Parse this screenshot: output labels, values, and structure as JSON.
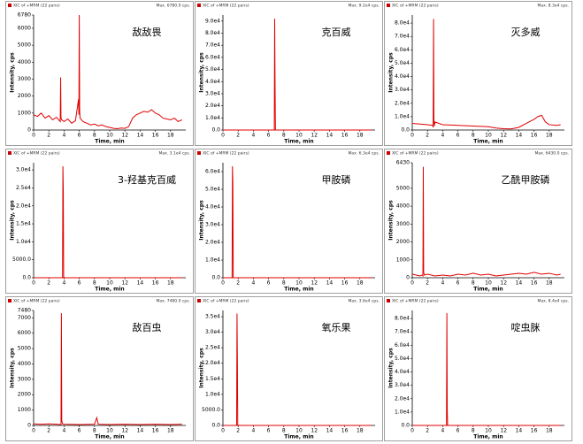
{
  "chart_data": [
    {
      "type": "line",
      "title": "敌敌畏",
      "header": "XIC of +MRM (22 pairs)",
      "max_label": "Max. 6780.0 cps.",
      "xlabel": "Time, min",
      "ylabel": "Intensity, cps",
      "xlim": [
        0,
        20
      ],
      "xticks": [
        0,
        2,
        4,
        6,
        8,
        10,
        12,
        14,
        16,
        18
      ],
      "ylim": [
        0,
        6780
      ],
      "yticks": [
        0,
        1000,
        2000,
        3000,
        4000,
        5000,
        6000,
        6780
      ],
      "x": [
        0,
        0.5,
        1,
        1.5,
        2,
        2.5,
        3,
        3.5,
        3.55,
        3.6,
        3.7,
        4,
        4.5,
        5,
        5.5,
        5.9,
        5.95,
        6.0,
        6.05,
        6.1,
        6.5,
        7,
        7.5,
        8,
        8.5,
        9,
        9.5,
        10,
        10.5,
        11,
        11.5,
        12,
        12.5,
        13,
        13.5,
        14,
        14.5,
        15,
        15.5,
        16,
        16.5,
        17,
        17.5,
        18,
        18.5,
        19,
        19.5
      ],
      "series": [
        {
          "color": "#e00000",
          "values": [
            900,
            800,
            1000,
            700,
            850,
            600,
            750,
            500,
            3100,
            700,
            600,
            500,
            650,
            400,
            550,
            1800,
            900,
            6780,
            1200,
            700,
            500,
            400,
            300,
            350,
            250,
            300,
            200,
            150,
            100,
            80,
            120,
            100,
            200,
            700,
            900,
            1000,
            1100,
            1050,
            1200,
            1000,
            900,
            700,
            650,
            600,
            700,
            500,
            600
          ]
        }
      ]
    },
    {
      "type": "line",
      "title": "克百威",
      "header": "XIC of +MRM (22 pairs)",
      "max_label": "Max. 9.2e4 cps.",
      "xlabel": "Time, min",
      "ylabel": "Intensity, cps",
      "xlim": [
        0,
        20
      ],
      "xticks": [
        0,
        2,
        4,
        6,
        8,
        10,
        12,
        14,
        16,
        18
      ],
      "ylim": [
        0,
        95000
      ],
      "yticks": [
        {
          "value": 0,
          "label": "0.0"
        },
        {
          "value": 10000,
          "label": "1.0e4"
        },
        {
          "value": 20000,
          "label": "2.0e4"
        },
        {
          "value": 30000,
          "label": "3.0e4"
        },
        {
          "value": 40000,
          "label": "4.0e4"
        },
        {
          "value": 50000,
          "label": "5.0e4"
        },
        {
          "value": 60000,
          "label": "6.0e4"
        },
        {
          "value": 70000,
          "label": "7.0e4"
        },
        {
          "value": 80000,
          "label": "8.0e4"
        },
        {
          "value": 90000,
          "label": "9.0e4"
        }
      ],
      "x": [
        0,
        2,
        4,
        6,
        6.75,
        6.8,
        6.85,
        6.9,
        8,
        10,
        12,
        14,
        16,
        18,
        19.5
      ],
      "series": [
        {
          "color": "#e00000",
          "values": [
            0,
            0,
            0,
            0,
            0,
            92000,
            40000,
            0,
            0,
            0,
            0,
            0,
            0,
            0,
            0
          ]
        }
      ]
    },
    {
      "type": "line",
      "title": "灭多威",
      "header": "XIC of +MRM (22 pairs)",
      "max_label": "Max. 8.3e4 cps.",
      "xlabel": "Time, min",
      "ylabel": "Intensity, cps",
      "xlim": [
        0,
        20
      ],
      "xticks": [
        0,
        2,
        4,
        6,
        8,
        10,
        12,
        14,
        16,
        18
      ],
      "ylim": [
        0,
        86000
      ],
      "yticks": [
        {
          "value": 0,
          "label": "0.0"
        },
        {
          "value": 10000,
          "label": "1.0e4"
        },
        {
          "value": 20000,
          "label": "2.0e4"
        },
        {
          "value": 30000,
          "label": "3.0e4"
        },
        {
          "value": 40000,
          "label": "4.0e4"
        },
        {
          "value": 50000,
          "label": "5.0e4"
        },
        {
          "value": 60000,
          "label": "6.0e4"
        },
        {
          "value": 70000,
          "label": "7.0e4"
        },
        {
          "value": 80000,
          "label": "8.0e4"
        }
      ],
      "x": [
        0,
        1,
        2,
        2.7,
        2.75,
        2.8,
        2.85,
        2.9,
        3,
        4,
        6,
        8,
        10,
        11,
        12,
        13,
        14,
        15,
        16,
        16.5,
        17,
        17.5,
        18,
        19,
        19.5
      ],
      "series": [
        {
          "color": "#e00000",
          "values": [
            5000,
            4500,
            4000,
            3500,
            2000,
            83000,
            8000,
            3000,
            6000,
            4000,
            3500,
            3000,
            2500,
            1500,
            1000,
            800,
            2000,
            5000,
            8000,
            10000,
            11000,
            6000,
            4000,
            3500,
            4000
          ]
        }
      ]
    },
    {
      "type": "line",
      "title": "3-羟基克百威",
      "header": "XIC of +MRM (22 pairs)",
      "max_label": "Max. 3.1e4 cps.",
      "xlabel": "Time, min",
      "ylabel": "Intensity, cps",
      "xlim": [
        0,
        20
      ],
      "xticks": [
        0,
        2,
        4,
        6,
        8,
        10,
        12,
        14,
        16,
        18
      ],
      "ylim": [
        0,
        32000
      ],
      "yticks": [
        {
          "value": 0,
          "label": "0.0"
        },
        {
          "value": 5000,
          "label": "5000.0"
        },
        {
          "value": 10000,
          "label": "1.0e4"
        },
        {
          "value": 15000,
          "label": "1.5e4"
        },
        {
          "value": 20000,
          "label": "2.0e4"
        },
        {
          "value": 25000,
          "label": "2.5e4"
        },
        {
          "value": 30000,
          "label": "3.0e4"
        }
      ],
      "x": [
        0,
        2,
        3.8,
        3.85,
        3.9,
        3.95,
        4,
        6,
        8,
        10,
        12,
        14,
        16,
        18,
        19.5
      ],
      "series": [
        {
          "color": "#e00000",
          "values": [
            0,
            0,
            0,
            31000,
            24000,
            0,
            0,
            0,
            0,
            0,
            0,
            0,
            0,
            0,
            0
          ]
        }
      ]
    },
    {
      "type": "line",
      "title": "甲胺磷",
      "header": "XIC of +MRM (22 pairs)",
      "max_label": "Max. 6.3e4 cps.",
      "xlabel": "Time, min",
      "ylabel": "Intensity, cps",
      "xlim": [
        0,
        20
      ],
      "xticks": [
        0,
        2,
        4,
        6,
        8,
        10,
        12,
        14,
        16,
        18
      ],
      "ylim": [
        0,
        65000
      ],
      "yticks": [
        {
          "value": 0,
          "label": "0.0"
        },
        {
          "value": 10000,
          "label": "1.0e4"
        },
        {
          "value": 20000,
          "label": "2.0e4"
        },
        {
          "value": 30000,
          "label": "3.0e4"
        },
        {
          "value": 40000,
          "label": "4.0e4"
        },
        {
          "value": 50000,
          "label": "5.0e4"
        },
        {
          "value": 60000,
          "label": "6.0e4"
        }
      ],
      "x": [
        0,
        1,
        1.2,
        1.25,
        1.3,
        1.35,
        1.4,
        3,
        6,
        9,
        12,
        15,
        18,
        19.5
      ],
      "series": [
        {
          "color": "#e00000",
          "values": [
            0,
            0,
            0,
            63000,
            54000,
            0,
            0,
            0,
            0,
            0,
            0,
            0,
            0,
            0
          ]
        }
      ]
    },
    {
      "type": "line",
      "title": "乙酰甲胺磷",
      "header": "XIC of +MRM (22 pairs)",
      "max_label": "Max. 6430.0 cps.",
      "xlabel": "Time, min",
      "ylabel": "Intensity, cps",
      "xlim": [
        0,
        20
      ],
      "xticks": [
        0,
        2,
        4,
        6,
        8,
        10,
        12,
        14,
        16,
        18
      ],
      "ylim": [
        0,
        6430
      ],
      "yticks": [
        0,
        1000,
        2000,
        3000,
        4000,
        5000,
        6430
      ],
      "x": [
        0,
        0.5,
        1,
        1.3,
        1.4,
        1.45,
        1.5,
        1.6,
        2,
        3,
        4,
        5,
        6,
        7,
        8,
        9,
        10,
        11,
        12,
        13,
        14,
        15,
        16,
        17,
        18,
        19,
        19.5
      ],
      "series": [
        {
          "color": "#e00000",
          "values": [
            200,
            150,
            100,
            150,
            100,
            6200,
            300,
            150,
            200,
            100,
            150,
            100,
            200,
            150,
            250,
            150,
            200,
            100,
            150,
            200,
            250,
            200,
            300,
            200,
            250,
            150,
            200
          ]
        }
      ]
    },
    {
      "type": "line",
      "title": "敌百虫",
      "header": "XIC of +MRM (22 pairs)",
      "max_label": "Max. 7480.0 cps.",
      "xlabel": "Time, min",
      "ylabel": "Intensity, cps",
      "xlim": [
        0,
        20
      ],
      "xticks": [
        0,
        2,
        4,
        6,
        8,
        10,
        12,
        14,
        16,
        18
      ],
      "ylim": [
        0,
        7480
      ],
      "yticks": [
        0,
        1000,
        2000,
        3000,
        4000,
        5000,
        6000,
        7000,
        7480
      ],
      "x": [
        0,
        1,
        2,
        3,
        3.6,
        3.65,
        3.7,
        3.8,
        4,
        6,
        8,
        8.3,
        8.5,
        10,
        12,
        14,
        16,
        18,
        19.5
      ],
      "series": [
        {
          "color": "#e00000",
          "values": [
            100,
            80,
            100,
            80,
            50,
            7300,
            300,
            100,
            80,
            60,
            80,
            500,
            80,
            60,
            80,
            60,
            80,
            60,
            80
          ]
        }
      ]
    },
    {
      "type": "line",
      "title": "氧乐果",
      "header": "XIC of +MRM (22 pairs)",
      "max_label": "Max. 3.6e4 cps.",
      "xlabel": "Time, min",
      "ylabel": "Intensity, cps",
      "xlim": [
        0,
        20
      ],
      "xticks": [
        0,
        2,
        4,
        6,
        8,
        10,
        12,
        14,
        16,
        18
      ],
      "ylim": [
        0,
        37000
      ],
      "yticks": [
        {
          "value": 0,
          "label": "0.0"
        },
        {
          "value": 5000,
          "label": "5000.0"
        },
        {
          "value": 10000,
          "label": "1.0e4"
        },
        {
          "value": 15000,
          "label": "1.5e4"
        },
        {
          "value": 20000,
          "label": "2.0e4"
        },
        {
          "value": 25000,
          "label": "2.5e4"
        },
        {
          "value": 30000,
          "label": "3.0e4"
        },
        {
          "value": 35000,
          "label": "3.5e4"
        }
      ],
      "x": [
        0,
        1,
        1.8,
        1.85,
        1.9,
        1.95,
        2,
        4,
        8,
        12,
        16,
        19.5
      ],
      "series": [
        {
          "color": "#e00000",
          "values": [
            0,
            0,
            0,
            36000,
            21000,
            0,
            0,
            0,
            0,
            0,
            0,
            0
          ]
        }
      ]
    },
    {
      "type": "line",
      "title": "啶虫脒",
      "header": "XIC of +MRM (22 pairs)",
      "max_label": "Max. 8.4e4 cps.",
      "xlabel": "Time, min",
      "ylabel": "Intensity, cps",
      "xlim": [
        0,
        20
      ],
      "xticks": [
        0,
        2,
        4,
        6,
        8,
        10,
        12,
        14,
        16,
        18
      ],
      "ylim": [
        0,
        86000
      ],
      "yticks": [
        {
          "value": 0,
          "label": "0.0"
        },
        {
          "value": 10000,
          "label": "1.0e4"
        },
        {
          "value": 20000,
          "label": "2.0e4"
        },
        {
          "value": 30000,
          "label": "3.0e4"
        },
        {
          "value": 40000,
          "label": "4.0e4"
        },
        {
          "value": 50000,
          "label": "5.0e4"
        },
        {
          "value": 60000,
          "label": "6.0e4"
        },
        {
          "value": 70000,
          "label": "7.0e4"
        },
        {
          "value": 80000,
          "label": "8.0e4"
        }
      ],
      "x": [
        0,
        2,
        4.5,
        4.55,
        4.6,
        4.65,
        4.7,
        6,
        10,
        14,
        18,
        19.5
      ],
      "series": [
        {
          "color": "#e00000",
          "values": [
            0,
            0,
            0,
            84000,
            11000,
            0,
            0,
            0,
            0,
            0,
            0,
            0
          ]
        }
      ]
    }
  ]
}
